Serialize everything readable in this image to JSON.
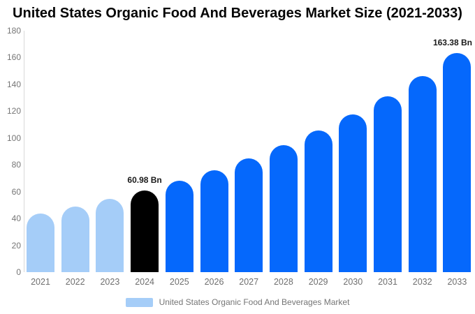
{
  "title": "United States Organic Food And Beverages Market Size (2021-2033)",
  "legend": {
    "label": "United States Organic Food And Beverages Market",
    "swatch_color": "#A5CDF8"
  },
  "colors": {
    "historical_bar": "#A5CDF8",
    "highlight_bar": "#000000",
    "forecast_bar": "#0568FC",
    "axis_line": "#d9d9d9",
    "tick_text": "#757575",
    "annotation_text": "#1a1a1a"
  },
  "chart_data": {
    "type": "bar",
    "title": "United States Organic Food And Beverages Market Size (2021-2033)",
    "categories": [
      "2021",
      "2022",
      "2023",
      "2024",
      "2025",
      "2026",
      "2027",
      "2028",
      "2029",
      "2030",
      "2031",
      "2032",
      "2033"
    ],
    "values": [
      43.9,
      49.0,
      54.7,
      60.98,
      68.0,
      75.9,
      84.7,
      94.5,
      105.4,
      117.6,
      131.2,
      146.4,
      163.38
    ],
    "unit": "Bn",
    "bar_colors": [
      "#A5CDF8",
      "#A5CDF8",
      "#A5CDF8",
      "#000000",
      "#0568FC",
      "#0568FC",
      "#0568FC",
      "#0568FC",
      "#0568FC",
      "#0568FC",
      "#0568FC",
      "#0568FC",
      "#0568FC"
    ],
    "annotations": [
      {
        "category": "2024",
        "label": "60.98 Bn"
      },
      {
        "category": "2033",
        "label": "163.38 Bn"
      }
    ],
    "xlabel": "",
    "ylabel": "",
    "ylim": [
      0,
      180
    ],
    "ytick_step": 20,
    "grid": false,
    "legend_entries": [
      "United States Organic Food And Beverages Market"
    ],
    "legend_position": "bottom"
  }
}
